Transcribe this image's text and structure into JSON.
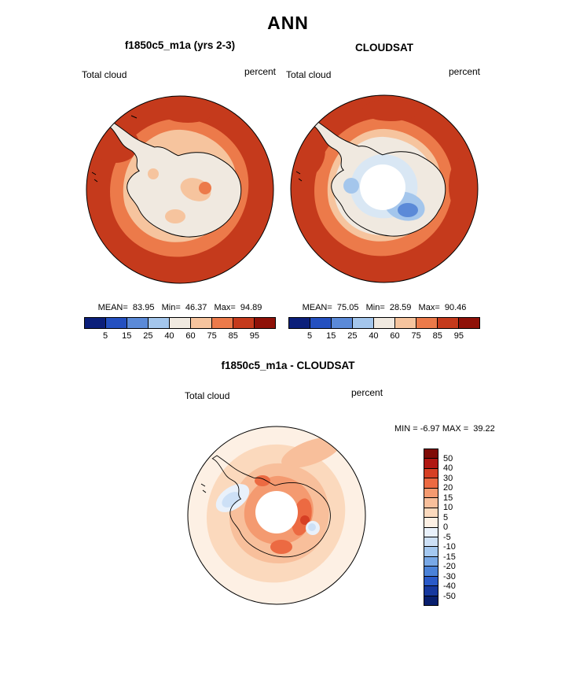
{
  "season_title": "ANN",
  "panels": {
    "model": {
      "title": "f1850c5_m1a (yrs 2-3)",
      "field": "Total cloud",
      "units": "percent",
      "stats": "MEAN=  83.95   Min=  46.37   Max=  94.89"
    },
    "obs": {
      "title": "CLOUDSAT",
      "field": "Total cloud",
      "units": "percent",
      "stats": "MEAN=  75.05   Min=  28.59   Max=  90.46"
    },
    "diff": {
      "title": "f1850c5_m1a - CLOUDSAT",
      "field": "Total cloud",
      "units": "percent",
      "stats": "MIN = -6.97 MAX =  39.22"
    }
  },
  "palettes": {
    "cloud": [
      "#0b1f7a",
      "#2450c0",
      "#5b8ad8",
      "#a4c6ec",
      "#f0e9e0",
      "#f6c49e",
      "#ec7a4a",
      "#c53a1c",
      "#8f1108"
    ],
    "diff": [
      "#081f6e",
      "#16389e",
      "#2a5ac8",
      "#4b82d8",
      "#78a8e6",
      "#a4c8f0",
      "#cde0f6",
      "#e9f1fb",
      "#fdf0e4",
      "#fbd9bd",
      "#f8bf9b",
      "#f49a70",
      "#ec6a42",
      "#d63f24",
      "#b01712",
      "#7f0b06"
    ],
    "misc": [
      "#d9e7f4"
    ]
  },
  "colorbars": {
    "cloud": {
      "orientation": "horizontal",
      "palette": "cloud",
      "tick_labels": [
        "5",
        "15",
        "25",
        "40",
        "60",
        "75",
        "85",
        "95"
      ]
    },
    "diff": {
      "orientation": "vertical",
      "palette": "diff",
      "tick_labels": [
        "50",
        "40",
        "30",
        "20",
        "15",
        "10",
        "5",
        "0",
        "-5",
        "-10",
        "-15",
        "-20",
        "-30",
        "-40",
        "-50"
      ]
    }
  },
  "chart_data": [
    {
      "type": "heatmap",
      "subtype": "south_polar_stereographic_contour_map",
      "title": "f1850c5_m1a (yrs 2-3)",
      "season": "ANN",
      "variable": "Total cloud",
      "units": "percent",
      "mean": 83.95,
      "min": 46.37,
      "max": 94.89,
      "contour_levels": [
        5,
        15,
        25,
        40,
        60,
        75,
        85,
        95
      ],
      "palette": "cloud",
      "colorbar_position": "bottom"
    },
    {
      "type": "heatmap",
      "subtype": "south_polar_stereographic_contour_map",
      "title": "CLOUDSAT",
      "season": "ANN",
      "variable": "Total cloud",
      "units": "percent",
      "mean": 75.05,
      "min": 28.59,
      "max": 90.46,
      "contour_levels": [
        5,
        15,
        25,
        40,
        60,
        75,
        85,
        95
      ],
      "palette": "cloud",
      "colorbar_position": "bottom"
    },
    {
      "type": "heatmap",
      "subtype": "south_polar_stereographic_contour_map",
      "title": "f1850c5_m1a - CLOUDSAT",
      "season": "ANN",
      "variable": "Total cloud",
      "units": "percent",
      "min": -6.97,
      "max": 39.22,
      "contour_levels": [
        -50,
        -40,
        -30,
        -20,
        -15,
        -10,
        -5,
        0,
        5,
        10,
        15,
        20,
        30,
        40,
        50
      ],
      "palette": "diff",
      "colorbar_position": "right"
    }
  ]
}
